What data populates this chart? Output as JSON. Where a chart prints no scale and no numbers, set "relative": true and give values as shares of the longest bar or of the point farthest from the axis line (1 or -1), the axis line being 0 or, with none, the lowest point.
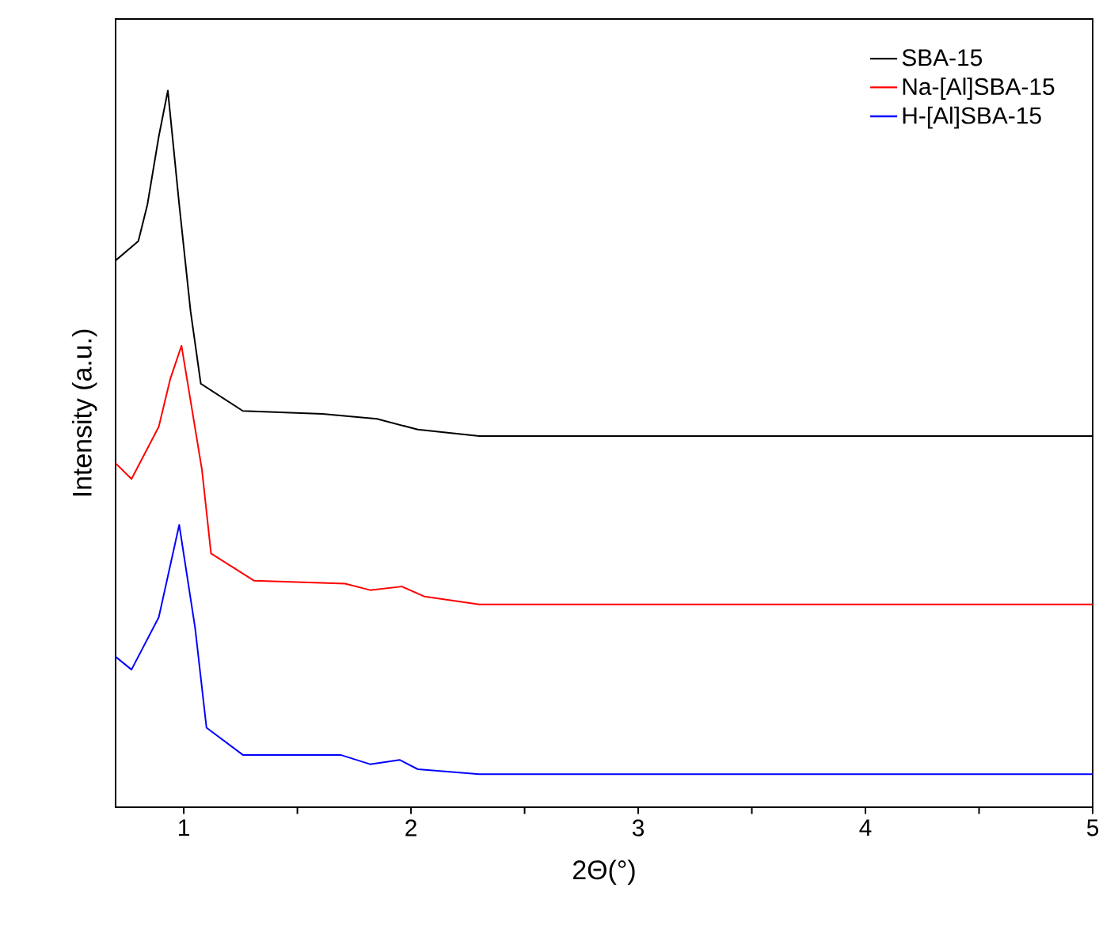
{
  "chart_data": {
    "type": "line",
    "relative": true,
    "xlabel": "2Θ(°)",
    "ylabel": "Intensity (a.u.)",
    "xlim": [
      0.7,
      5
    ],
    "xticks": [
      1,
      {
        "value": 1.5,
        "label": null
      },
      2,
      {
        "value": 2.5,
        "label": null
      },
      3,
      {
        "value": 3.5,
        "label": null
      },
      4,
      {
        "value": 4.5,
        "label": null
      },
      5
    ],
    "legend": "top right",
    "grid": false,
    "marker": "none",
    "line_style": "solid",
    "series": [
      {
        "name": "SBA-15",
        "color": "#000000",
        "x": [
          0.7,
          0.8,
          0.84,
          0.89,
          0.93,
          0.98,
          1.03,
          1.075,
          1.26,
          1.61,
          1.85,
          2.03,
          2.3,
          5.0
        ],
        "values": [
          0.763,
          0.79,
          0.841,
          0.936,
          1,
          0.841,
          0.692,
          0.591,
          0.553,
          0.549,
          0.542,
          0.527,
          0.518,
          0.518
        ]
      },
      {
        "name": "Na-[Al]SBA-15",
        "color": "#ff0000",
        "x": [
          0.7,
          0.77,
          0.89,
          0.94,
          0.99,
          1.08,
          1.12,
          1.31,
          1.71,
          1.82,
          1.96,
          2.06,
          2.3,
          5.0
        ],
        "values": [
          0.48,
          0.458,
          0.531,
          0.597,
          0.644,
          0.471,
          0.354,
          0.316,
          0.312,
          0.303,
          0.308,
          0.294,
          0.283,
          0.283
        ]
      },
      {
        "name": "H-[Al]SBA-15",
        "color": "#0000ff",
        "x": [
          0.7,
          0.77,
          0.89,
          0.98,
          1.05,
          1.1,
          1.26,
          1.69,
          1.82,
          1.95,
          2.03,
          2.3,
          5.0
        ],
        "values": [
          0.21,
          0.192,
          0.265,
          0.394,
          0.25,
          0.111,
          0.073,
          0.073,
          0.06,
          0.066,
          0.053,
          0.046,
          0.046
        ]
      }
    ]
  }
}
